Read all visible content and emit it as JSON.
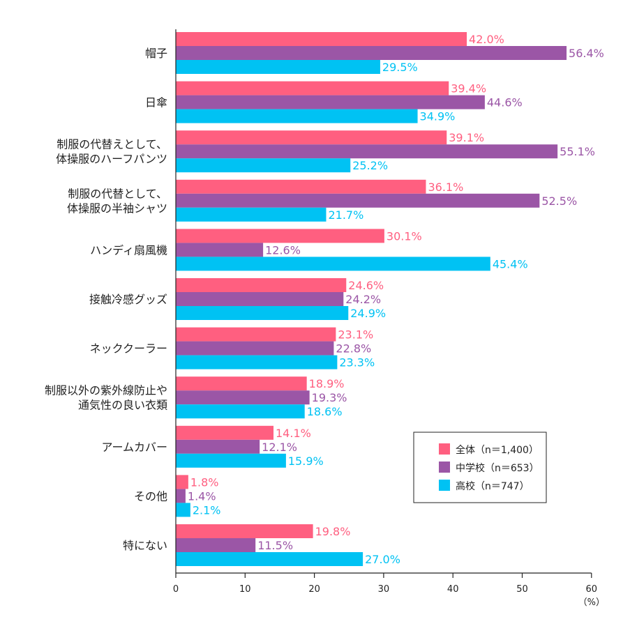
{
  "chart_data": {
    "type": "bar",
    "orientation": "horizontal",
    "categories": [
      [
        "帽子"
      ],
      [
        "日傘"
      ],
      [
        "制服の代替えとして、",
        "体操服のハーフパンツ"
      ],
      [
        "制服の代替として、",
        "体操服の半袖シャツ"
      ],
      [
        "ハンディ扇風機"
      ],
      [
        "接触冷感グッズ"
      ],
      [
        "ネッククーラー"
      ],
      [
        "制服以外の紫外線防止や",
        "通気性の良い衣類"
      ],
      [
        "アームカバー"
      ],
      [
        "その他"
      ],
      [
        "特にない"
      ]
    ],
    "series": [
      {
        "name": "全体（n＝1,400）",
        "color": "#ff5f80",
        "values": [
          42.0,
          39.4,
          39.1,
          36.1,
          30.1,
          24.6,
          23.1,
          18.9,
          14.1,
          1.8,
          19.8
        ]
      },
      {
        "name": "中学校（n＝653）",
        "color": "#9b56a6",
        "values": [
          56.4,
          44.6,
          55.1,
          52.5,
          12.6,
          24.2,
          22.8,
          19.3,
          12.1,
          1.4,
          11.5
        ]
      },
      {
        "name": "高校（n＝747）",
        "color": "#00c2f3",
        "values": [
          29.5,
          34.9,
          25.2,
          21.7,
          45.4,
          24.9,
          23.3,
          18.6,
          15.9,
          2.1,
          27.0
        ]
      }
    ],
    "xlim": [
      0,
      60
    ],
    "xticks": [
      0,
      10,
      20,
      30,
      40,
      50,
      60
    ],
    "xunit": "（%）",
    "value_suffix": "%",
    "legend_position": "bottom-right",
    "grid": false
  }
}
